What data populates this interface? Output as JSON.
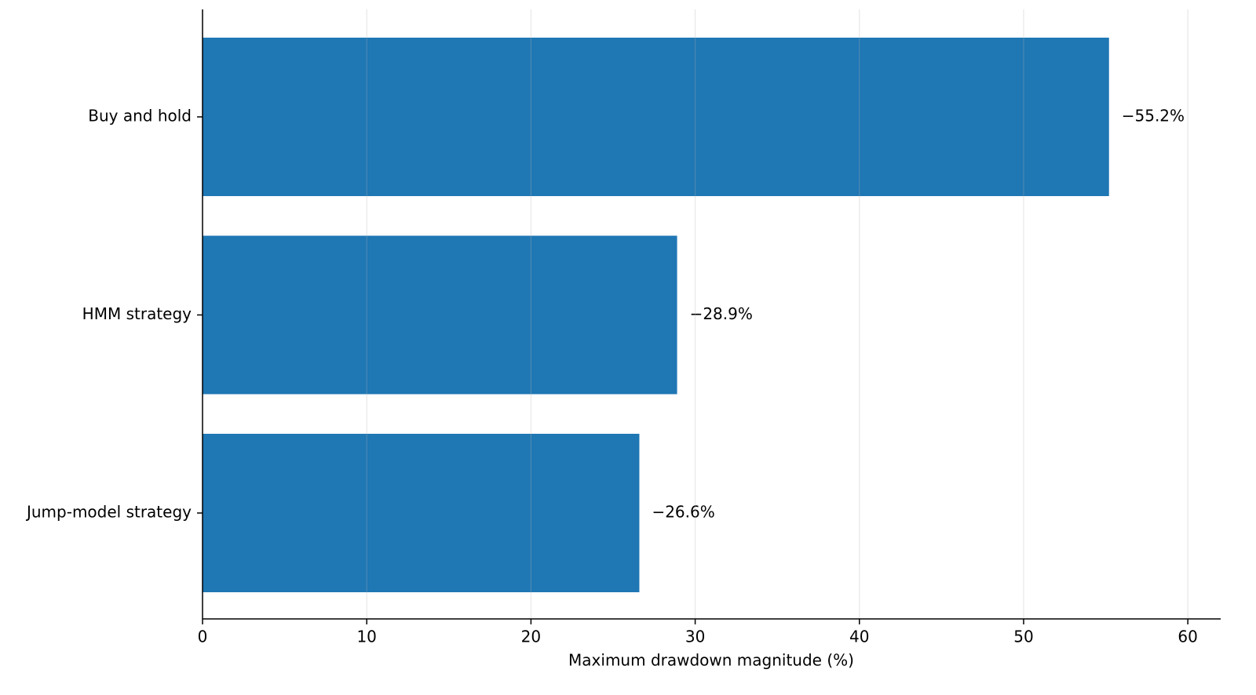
{
  "chart_data": {
    "type": "barh",
    "categories": [
      "Buy and hold",
      "HMM strategy",
      "Jump-model strategy"
    ],
    "values": [
      55.2,
      28.9,
      26.6
    ],
    "value_labels": [
      "−55.2%",
      "−28.9%",
      "−26.6%"
    ],
    "color": "#1f77b4",
    "xlabel": "Maximum drawdown magnitude (%)",
    "xlim": [
      0,
      62
    ],
    "xticks": [
      0,
      10,
      20,
      30,
      40,
      50,
      60
    ],
    "grid": true
  }
}
